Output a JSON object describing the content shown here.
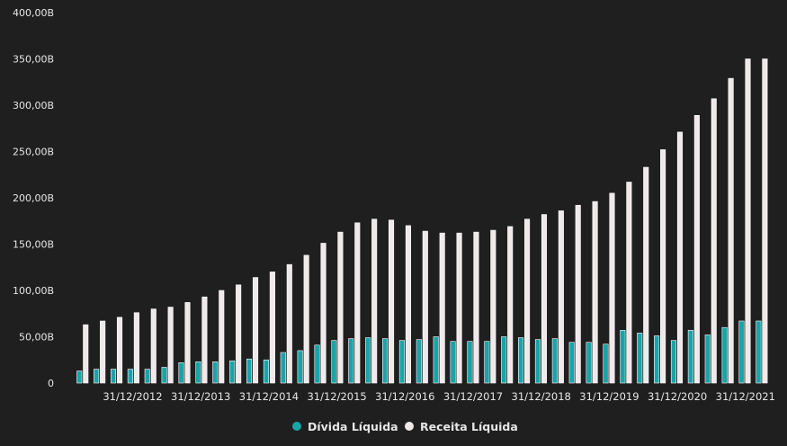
{
  "chart_data": {
    "type": "bar",
    "title": "",
    "xlabel": "",
    "ylabel": "",
    "ylim": [
      0,
      400
    ],
    "yticks": [
      "0",
      "50,00B",
      "100,00B",
      "150,00B",
      "200,00B",
      "250,00B",
      "300,00B",
      "350,00B",
      "400,00B"
    ],
    "xtick_labels": [
      "31/12/2012",
      "31/12/2013",
      "31/12/2014",
      "31/12/2015",
      "31/12/2016",
      "31/12/2017",
      "31/12/2018",
      "31/12/2019",
      "31/12/2020",
      "31/12/2021"
    ],
    "grid": false,
    "legend_position": "bottom",
    "series": [
      {
        "name": "Dívida Líquida",
        "color": "#1aa3a8",
        "values": [
          13,
          15,
          15,
          15,
          15,
          17,
          22,
          23,
          23,
          24,
          26,
          25,
          33,
          35,
          41,
          46,
          48,
          49,
          48,
          46,
          47,
          50,
          45,
          45,
          45,
          50,
          49,
          47,
          48,
          44,
          44,
          42,
          57,
          54,
          51,
          46,
          57,
          52,
          60,
          67,
          67
        ]
      },
      {
        "name": "Receita Líquida",
        "color": "#efe9ea",
        "values": [
          63,
          67,
          71,
          76,
          80,
          82,
          87,
          93,
          100,
          106,
          114,
          120,
          128,
          138,
          151,
          163,
          173,
          177,
          176,
          170,
          164,
          162,
          162,
          163,
          165,
          169,
          177,
          182,
          186,
          192,
          196,
          205,
          217,
          233,
          252,
          271,
          289,
          307,
          329,
          350,
          350
        ]
      }
    ]
  }
}
